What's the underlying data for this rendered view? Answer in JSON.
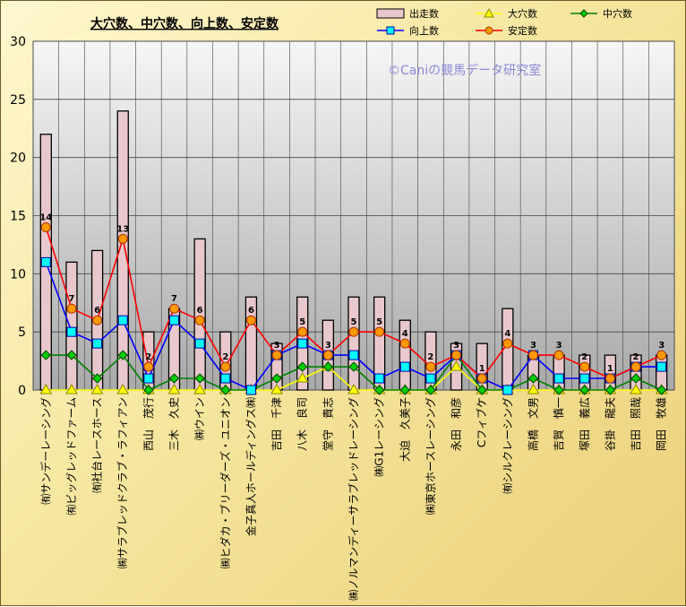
{
  "chart_data": {
    "type": "bar",
    "title": "大穴数、中穴数、向上数、安定数",
    "watermark": "©Caniの競馬データ研究室",
    "ylim": [
      0,
      30
    ],
    "yticks": [
      0,
      5,
      10,
      15,
      20,
      25,
      30
    ],
    "grid": true,
    "legend_position": "top-right",
    "categories": [
      "㈲サンデーレーシング",
      "㈲ビッグレッドファーム",
      "㈲社台レースホース",
      "㈱サラブレッドクラブ・ラフィアン",
      "西山　茂行",
      "三木　久史",
      "㈱ウイン",
      "㈱ヒダカ・ブリーダーズ・ユニオン",
      "金子真人ホールディングス㈱",
      "吉田　千津",
      "八木　良司",
      "堂守　貴志",
      "㈱ノルマンディーサラブレッドレーシング",
      "㈱G1レーシング",
      "大迫　久美子",
      "㈱東京ホースレーシング",
      "永田　和彦",
      "Cフィブケ",
      "㈲シルクレーシング",
      "高橋　文男",
      "吉賀　慎一",
      "塚田　義広",
      "谷掛　龍夫",
      "吉田　照哉",
      "岡田　牧雄"
    ],
    "series": [
      {
        "name": "出走数",
        "kind": "bar",
        "values": [
          22,
          11,
          12,
          24,
          5,
          7,
          13,
          5,
          8,
          4,
          8,
          6,
          8,
          8,
          6,
          5,
          4,
          4,
          7,
          3,
          3,
          3,
          3,
          3,
          3
        ]
      },
      {
        "name": "大穴数",
        "kind": "line",
        "values": [
          0,
          0,
          0,
          0,
          0,
          0,
          0,
          0,
          0,
          0,
          1,
          2,
          0,
          0,
          0,
          0,
          2,
          0,
          0,
          0,
          0,
          0,
          0,
          0,
          0
        ]
      },
      {
        "name": "中穴数",
        "kind": "line",
        "values": [
          3,
          3,
          1,
          3,
          0,
          1,
          1,
          0,
          0,
          1,
          2,
          2,
          2,
          0,
          0,
          0,
          3,
          0,
          0,
          1,
          0,
          0,
          0,
          1,
          0
        ]
      },
      {
        "name": "向上数",
        "kind": "line",
        "values": [
          11,
          5,
          4,
          6,
          1,
          6,
          4,
          1,
          0,
          3,
          4,
          3,
          3,
          1,
          2,
          1,
          3,
          1,
          0,
          3,
          1,
          1,
          1,
          2,
          2
        ]
      },
      {
        "name": "安定数",
        "kind": "line",
        "values": [
          14,
          7,
          6,
          13,
          2,
          7,
          6,
          2,
          6,
          3,
          5,
          3,
          5,
          5,
          4,
          2,
          3,
          1,
          4,
          3,
          3,
          2,
          1,
          2,
          3
        ]
      }
    ],
    "colors": {
      "bar_fill": "#e8c8cc",
      "bar_stroke": "#000000",
      "大穴数": "#ffff00",
      "中穴数": "#008000",
      "向上数": "#0000ff",
      "安定数": "#ff0000",
      "安定数_marker": "#ff9900",
      "向上数_marker": "#00ffff",
      "中穴数_marker": "#00cc00"
    }
  }
}
